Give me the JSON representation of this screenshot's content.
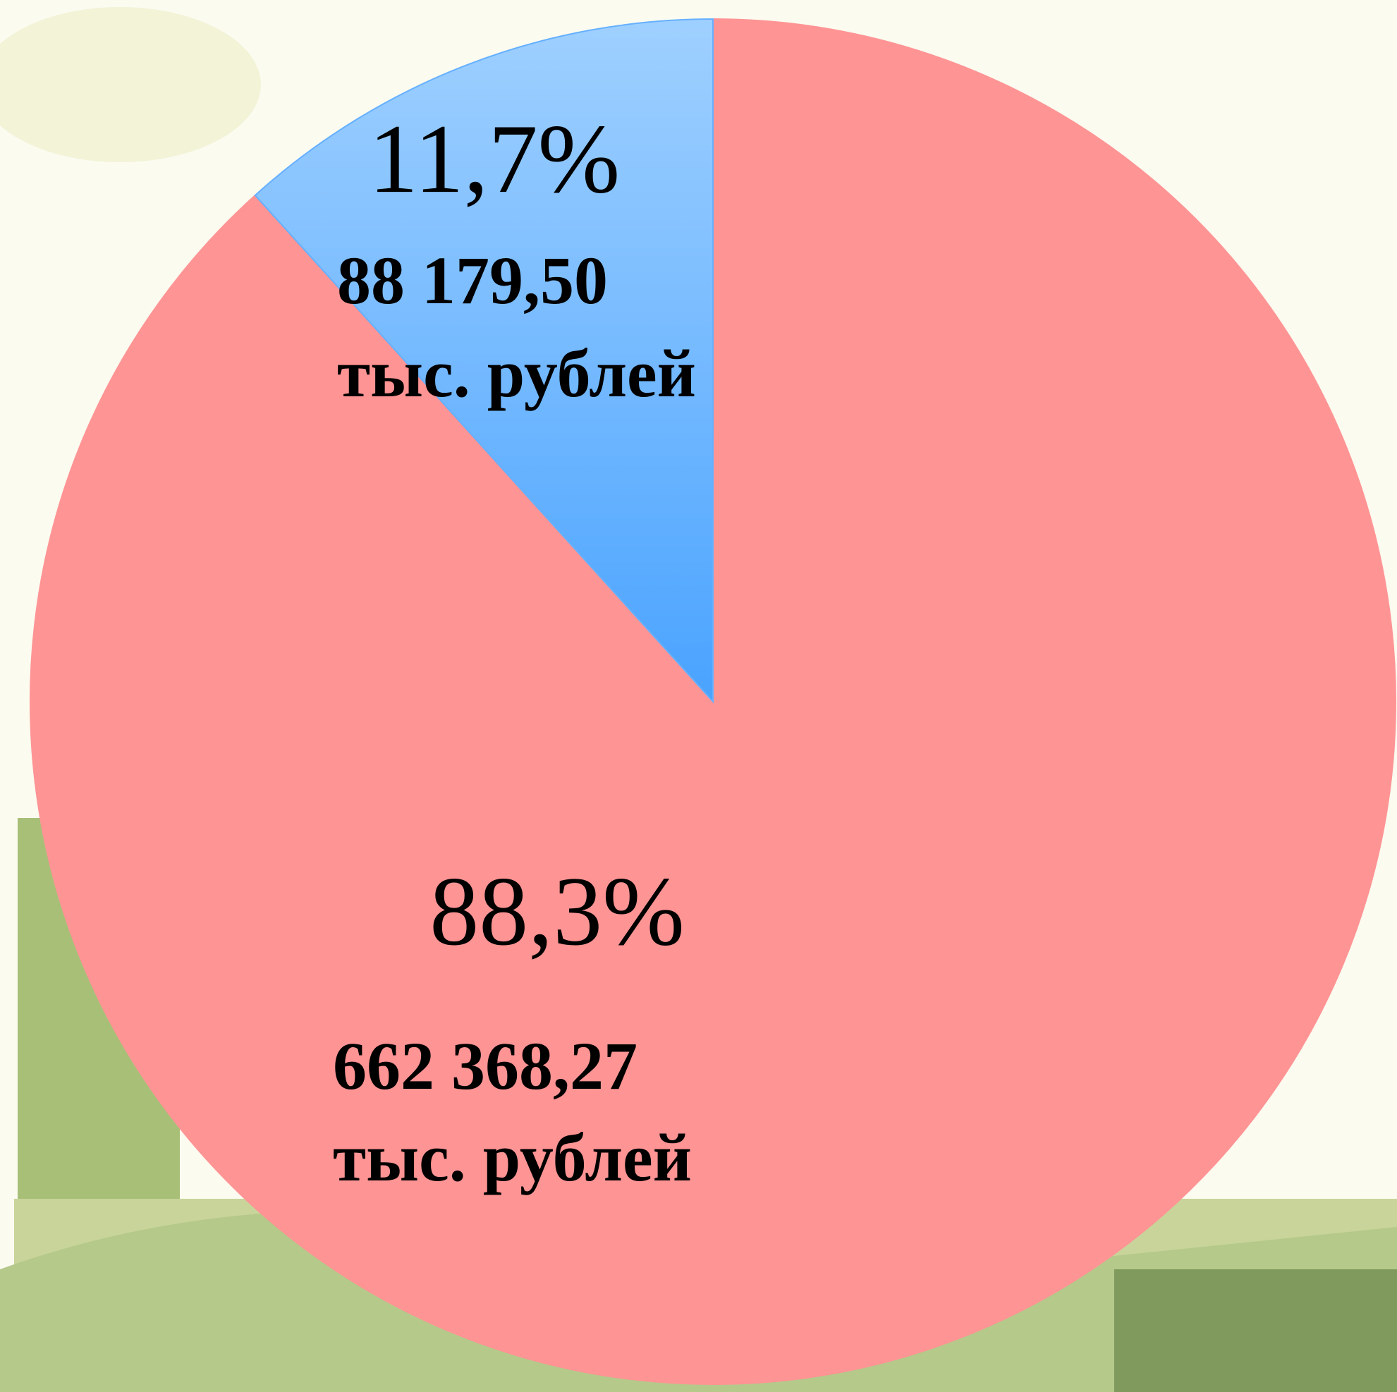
{
  "chart_data": {
    "type": "pie",
    "values": [
      88.3,
      11.7
    ],
    "value_labels": [
      "88,3%",
      "11,7%"
    ],
    "amount_labels": [
      "662 368,27",
      "88 179,50"
    ],
    "unit": "тыс. рублей",
    "colors": [
      "#ff9494",
      "#66b0ff"
    ]
  }
}
